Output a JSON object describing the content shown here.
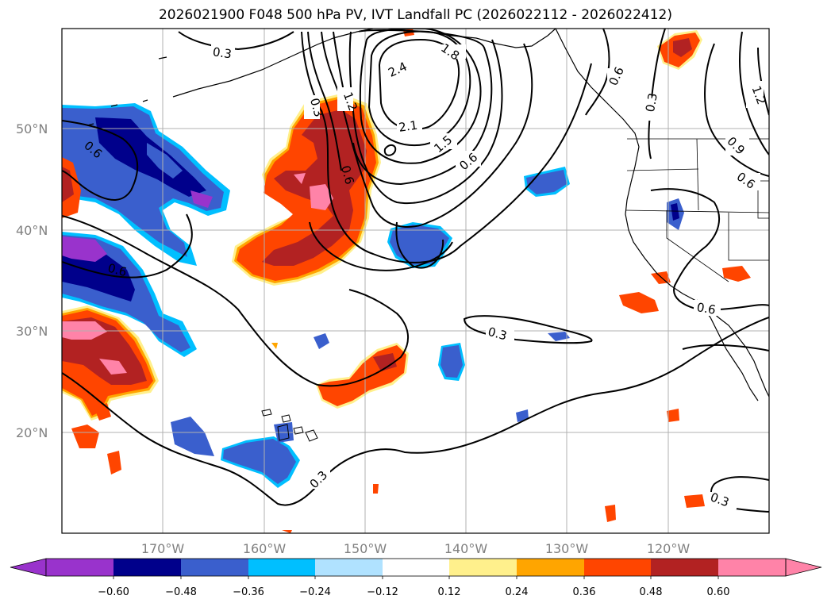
{
  "title": "2026021900 F048 500 hPa PV, IVT Landfall PC (2026022112 - 2026022412)",
  "lat_labels": [
    "50°N",
    "40°N",
    "30°N",
    "20°N"
  ],
  "lon_labels": [
    "170°W",
    "160°W",
    "150°W",
    "140°W",
    "130°W",
    "120°W"
  ],
  "colorbar": {
    "ticks": [
      "−0.60",
      "−0.48",
      "−0.36",
      "−0.24",
      "−0.12",
      "0.12",
      "0.24",
      "0.36",
      "0.48",
      "0.60"
    ],
    "colors": [
      "#9933cc",
      "#00008b",
      "#3a5fcd",
      "#00bfff",
      "#b0e2ff",
      "#ffffff",
      "#fff08c",
      "#ffa500",
      "#ff4500",
      "#b22222",
      "#ff83a8"
    ]
  },
  "contour_labels": [
    "0.3",
    "2.4",
    "1.8",
    "1.2",
    "0.3",
    "0.6",
    "2.1",
    "1.5",
    "0.6",
    "0.6",
    "0.3",
    "1.2",
    "0.9",
    "0.6",
    "0.6",
    "0.6",
    "0.6",
    "0.3",
    "0.3",
    "0.3"
  ]
}
